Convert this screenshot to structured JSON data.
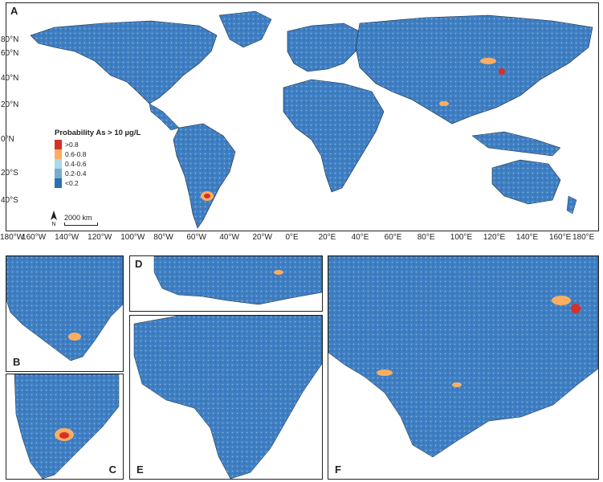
{
  "panels": {
    "A": "A",
    "B": "B",
    "C": "C",
    "D": "D",
    "E": "E",
    "F": "F"
  },
  "legend": {
    "title": "Probability As > 10 µg/L",
    "items": [
      {
        "label": ">0.8",
        "color": "#d73027"
      },
      {
        "label": "0.6-0.8",
        "color": "#fdae61"
      },
      {
        "label": "0.4-0.6",
        "color": "#abd9e9"
      },
      {
        "label": "0.2-0.4",
        "color": "#74add1"
      },
      {
        "label": "<0.2",
        "color": "#2c6fb3"
      }
    ]
  },
  "scale_bar": "2000 km",
  "north_label": "N",
  "lat_labels": [
    "80°N",
    "60°N",
    "40°N",
    "20°N",
    "0°N",
    "20°S",
    "40°S"
  ],
  "lon_labels": [
    "180°W",
    "160°W",
    "140°W",
    "120°W",
    "100°W",
    "80°W",
    "60°W",
    "40°W",
    "20°W",
    "0°E",
    "20°E",
    "40°E",
    "60°E",
    "80°E",
    "100°E",
    "120°E",
    "140°E",
    "160°E",
    "180°E"
  ],
  "colors": {
    "land_low": "#3a78bf",
    "land_mid": "#8ec4e0",
    "high": "#fdae61",
    "very_high": "#d73027",
    "border": "#1a2a3a"
  }
}
